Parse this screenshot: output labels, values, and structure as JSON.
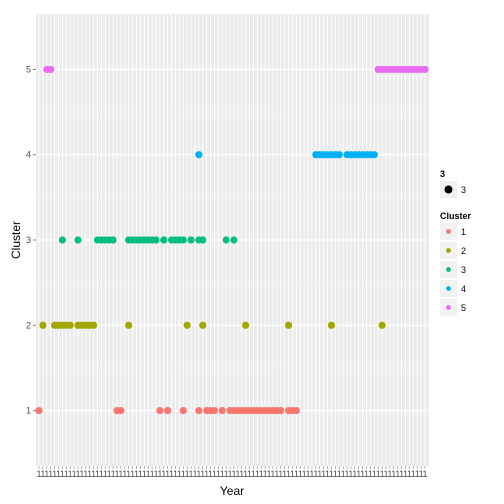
{
  "chart_data": {
    "type": "scatter",
    "xlabel": "Year",
    "ylabel": "Cluster",
    "y_ticks": [
      "1",
      "2",
      "3",
      "4",
      "5"
    ],
    "ylim": [
      0.35,
      5.65
    ],
    "x_range": [
      1,
      100
    ],
    "x_tick_label": "1",
    "grid": true,
    "panel_color": "#EBEBEB",
    "legend_placement": "right",
    "size_legend": {
      "title": "3",
      "label": "3"
    },
    "color_legend": {
      "title": "Cluster",
      "entries": [
        {
          "label": "1",
          "color": "#F8766D"
        },
        {
          "label": "2",
          "color": "#A3A500"
        },
        {
          "label": "3",
          "color": "#00BF7D"
        },
        {
          "label": "4",
          "color": "#00B0F6"
        },
        {
          "label": "5",
          "color": "#E76BF3"
        }
      ]
    },
    "series": [
      {
        "name": "1",
        "color": "#F8766D",
        "points": [
          [
            1,
            1
          ],
          [
            21,
            1
          ],
          [
            22,
            1
          ],
          [
            32,
            1
          ],
          [
            34,
            1
          ],
          [
            38,
            1
          ],
          [
            42,
            1
          ],
          [
            44,
            1
          ],
          [
            45,
            1
          ],
          [
            46,
            1
          ],
          [
            48,
            1
          ],
          [
            50,
            1
          ],
          [
            51,
            1
          ],
          [
            52,
            1
          ],
          [
            53,
            1
          ],
          [
            54,
            1
          ],
          [
            55,
            1
          ],
          [
            56,
            1
          ],
          [
            57,
            1
          ],
          [
            58,
            1
          ],
          [
            59,
            1
          ],
          [
            60,
            1
          ],
          [
            61,
            1
          ],
          [
            62,
            1
          ],
          [
            63,
            1
          ],
          [
            65,
            1
          ],
          [
            66,
            1
          ],
          [
            67,
            1
          ]
        ]
      },
      {
        "name": "2",
        "color": "#A3A500",
        "points": [
          [
            2,
            2
          ],
          [
            5,
            2
          ],
          [
            6,
            2
          ],
          [
            7,
            2
          ],
          [
            8,
            2
          ],
          [
            9,
            2
          ],
          [
            11,
            2
          ],
          [
            12,
            2
          ],
          [
            13,
            2
          ],
          [
            14,
            2
          ],
          [
            15,
            2
          ],
          [
            24,
            2
          ],
          [
            39,
            2
          ],
          [
            43,
            2
          ],
          [
            54,
            2
          ],
          [
            65,
            2
          ],
          [
            76,
            2
          ],
          [
            89,
            2
          ]
        ]
      },
      {
        "name": "3",
        "color": "#00BF7D",
        "points": [
          [
            7,
            3
          ],
          [
            11,
            3
          ],
          [
            16,
            3
          ],
          [
            17,
            3
          ],
          [
            18,
            3
          ],
          [
            19,
            3
          ],
          [
            20,
            3
          ],
          [
            24,
            3
          ],
          [
            25,
            3
          ],
          [
            26,
            3
          ],
          [
            27,
            3
          ],
          [
            28,
            3
          ],
          [
            29,
            3
          ],
          [
            30,
            3
          ],
          [
            31,
            3
          ],
          [
            33,
            3
          ],
          [
            35,
            3
          ],
          [
            36,
            3
          ],
          [
            37,
            3
          ],
          [
            38,
            3
          ],
          [
            40,
            3
          ],
          [
            42,
            3
          ],
          [
            43,
            3
          ],
          [
            49,
            3
          ],
          [
            51,
            3
          ]
        ]
      },
      {
        "name": "4",
        "color": "#00B0F6",
        "points": [
          [
            42,
            4
          ],
          [
            72,
            4
          ],
          [
            73,
            4
          ],
          [
            74,
            4
          ],
          [
            75,
            4
          ],
          [
            76,
            4
          ],
          [
            77,
            4
          ],
          [
            78,
            4
          ],
          [
            80,
            4
          ],
          [
            81,
            4
          ],
          [
            82,
            4
          ],
          [
            83,
            4
          ],
          [
            84,
            4
          ],
          [
            85,
            4
          ],
          [
            86,
            4
          ],
          [
            87,
            4
          ]
        ]
      },
      {
        "name": "5",
        "color": "#E76BF3",
        "points": [
          [
            3,
            5
          ],
          [
            4,
            5
          ],
          [
            88,
            5
          ],
          [
            89,
            5
          ],
          [
            90,
            5
          ],
          [
            91,
            5
          ],
          [
            92,
            5
          ],
          [
            93,
            5
          ],
          [
            94,
            5
          ],
          [
            95,
            5
          ],
          [
            96,
            5
          ],
          [
            97,
            5
          ],
          [
            98,
            5
          ],
          [
            99,
            5
          ],
          [
            100,
            5
          ]
        ]
      }
    ]
  }
}
